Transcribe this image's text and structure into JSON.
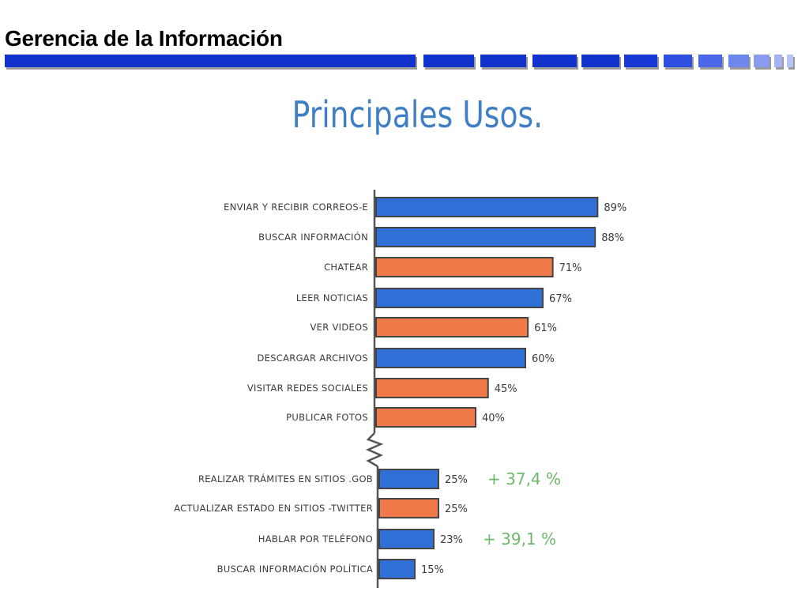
{
  "header": {
    "title": "Gerencia de la Información"
  },
  "colors": {
    "blue": "#2f6fd6",
    "orange": "#f07a4a",
    "header_bar": "#1a3ccf",
    "annotation": "#6db86d",
    "title": "#3f7fc6"
  },
  "chart_data": {
    "type": "bar",
    "orientation": "horizontal",
    "title": "Principales Usos.",
    "xlim": [
      0,
      100
    ],
    "axis_break": true,
    "grid": false,
    "bars": [
      {
        "label": "ENVIAR Y RECIBIR CORREOS-E",
        "value": 89,
        "value_label": "89%",
        "color": "blue"
      },
      {
        "label": "BUSCAR INFORMACIÓN",
        "value": 88,
        "value_label": "88%",
        "color": "blue"
      },
      {
        "label": "CHATEAR",
        "value": 71,
        "value_label": "71%",
        "color": "orange"
      },
      {
        "label": "LEER NOTICIAS",
        "value": 67,
        "value_label": "67%",
        "color": "blue"
      },
      {
        "label": "VER VIDEOS",
        "value": 61,
        "value_label": "61%",
        "color": "orange"
      },
      {
        "label": "DESCARGAR ARCHIVOS",
        "value": 60,
        "value_label": "60%",
        "color": "blue"
      },
      {
        "label": "VISITAR REDES SOCIALES",
        "value": 45,
        "value_label": "45%",
        "color": "orange"
      },
      {
        "label": "PUBLICAR FOTOS",
        "value": 40,
        "value_label": "40%",
        "color": "orange"
      },
      {
        "label": "REALIZAR TRÁMITES EN SITIOS .GOB",
        "value": 25,
        "value_label": "25%",
        "color": "blue",
        "annotation": "+ 37,4 %"
      },
      {
        "label": "ACTUALIZAR ESTADO EN SITIOS -TWITTER",
        "value": 25,
        "value_label": "25%",
        "color": "orange"
      },
      {
        "label": "HABLAR POR TELÉFONO",
        "value": 23,
        "value_label": "23%",
        "color": "blue",
        "annotation": "+ 39,1 %"
      },
      {
        "label": "BUSCAR INFORMACIÓN POLÍTICA",
        "value": 15,
        "value_label": "15%",
        "color": "blue"
      }
    ]
  }
}
